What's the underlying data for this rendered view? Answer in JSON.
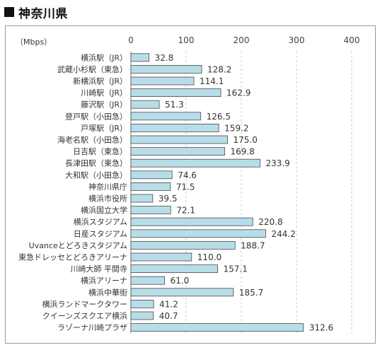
{
  "page": {
    "heading": "神奈川県"
  },
  "chart_data": {
    "type": "bar",
    "orientation": "horizontal",
    "unit_label": "（Mbps）",
    "xlim": [
      0,
      400
    ],
    "xticks": [
      0,
      100,
      200,
      300,
      400
    ],
    "grid": true,
    "bar_color": "#b7dde8",
    "bar_edge": "#4a4a4a",
    "categories": [
      "横浜駅（JR）",
      "武蔵小杉駅（東急）",
      "新横浜駅（JR）",
      "川崎駅（JR）",
      "藤沢駅（JR）",
      "登戸駅（小田急）",
      "戸塚駅（JR）",
      "海老名駅（小田急）",
      "日吉駅（東急）",
      "長津田駅（東急）",
      "大和駅（小田急）",
      "神奈川県庁",
      "横浜市役所",
      "横浜国立大学",
      "横浜スタジアム",
      "日産スタジアム",
      "Uvanceとどろきスタジアム",
      "東急ドレッセとどろきアリーナ",
      "川崎大師 平間寺",
      "横浜アリーナ",
      "横浜中華街",
      "横浜ランドマークタワー",
      "クイーンズスクエア横浜",
      "ラゾーナ川崎プラザ"
    ],
    "values": [
      32.8,
      128.2,
      114.1,
      162.9,
      51.3,
      126.5,
      159.2,
      175.0,
      169.8,
      233.9,
      74.6,
      71.5,
      39.5,
      72.1,
      220.8,
      244.2,
      188.7,
      110.0,
      157.1,
      61.0,
      185.7,
      41.2,
      40.7,
      312.6
    ],
    "value_labels": [
      "32.8",
      "128.2",
      "114.1",
      "162.9",
      "51.3",
      "126.5",
      "159.2",
      "175.0",
      "169.8",
      "233.9",
      "74.6",
      "71.5",
      "39.5",
      "72.1",
      "220.8",
      "244.2",
      "188.7",
      "110.0",
      "157.1",
      "61.0",
      "185.7",
      "41.2",
      "40.7",
      "312.6"
    ]
  }
}
